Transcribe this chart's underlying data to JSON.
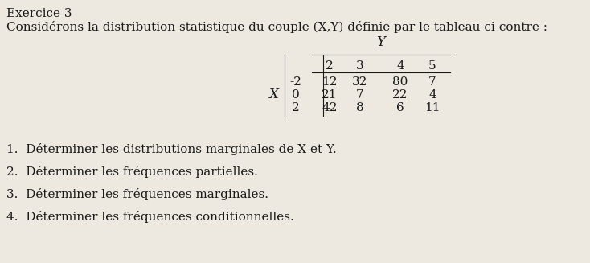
{
  "title_line1": "Exercice 3",
  "title_line2": "Considérons la distribution statistique du couple (X,Y) définie par le tableau ci-contre :",
  "Y_label": "Y",
  "X_label": "X",
  "Y_values": [
    "2",
    "3",
    "4",
    "5"
  ],
  "X_values": [
    "-2",
    "0",
    "2"
  ],
  "table_data": [
    [
      "12",
      "32",
      "80",
      "7"
    ],
    [
      "21",
      "7",
      "22",
      "4"
    ],
    [
      "42",
      "8",
      "6",
      "11"
    ]
  ],
  "questions": [
    "1.  Déterminer les distributions marginales de X et Y.",
    "2.  Déterminer les fréquences partielles.",
    "3.  Déterminer les fréquences marginales.",
    "4.  Déterminer les fréquences conditionnelles."
  ],
  "bg_color": "#ede9e0",
  "text_color": "#1a1a1a",
  "font_size": 11
}
